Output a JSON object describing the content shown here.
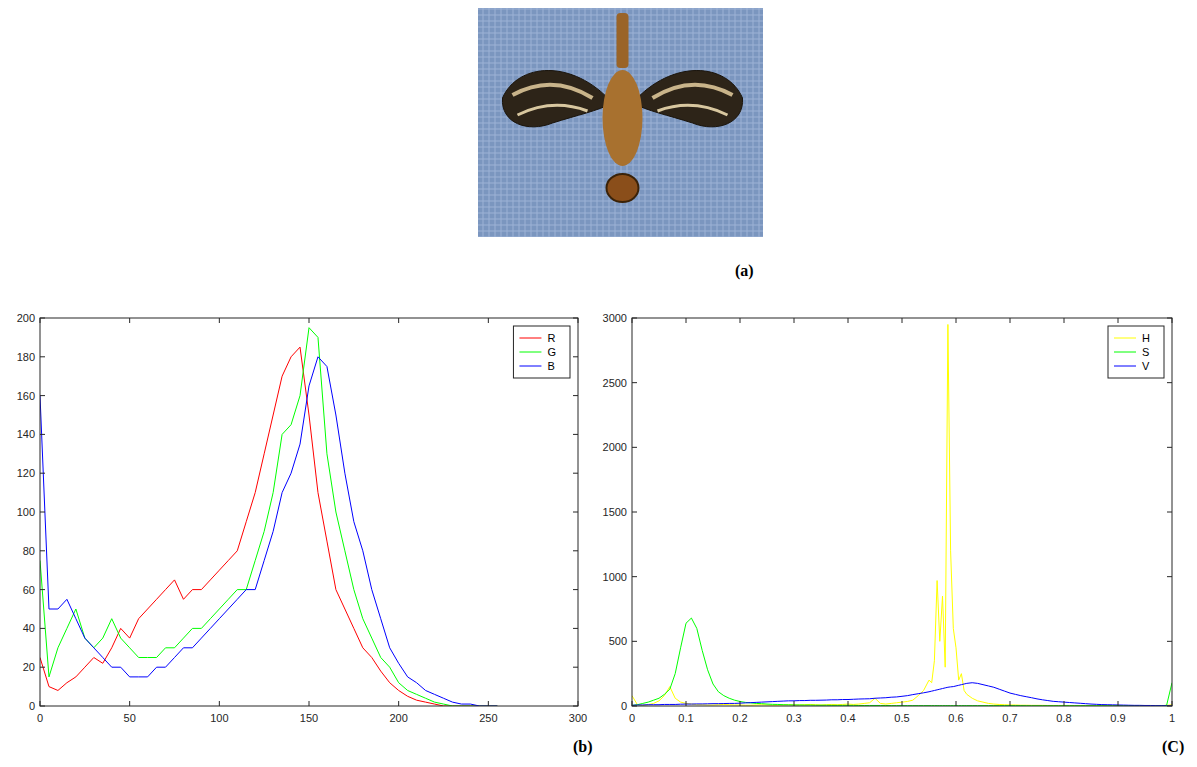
{
  "image_panel": {
    "label": "(a)"
  },
  "chart_data": [
    {
      "type": "line",
      "label": "(b)",
      "x": [
        0,
        5,
        10,
        15,
        20,
        25,
        30,
        35,
        40,
        45,
        50,
        55,
        60,
        65,
        70,
        75,
        80,
        85,
        90,
        95,
        100,
        105,
        110,
        115,
        120,
        125,
        130,
        135,
        140,
        145,
        150,
        155,
        160,
        165,
        170,
        175,
        180,
        185,
        190,
        195,
        200,
        205,
        210,
        215,
        220,
        225,
        230,
        235,
        240,
        245,
        250,
        255
      ],
      "series": [
        {
          "name": "R",
          "color": "#ff0000",
          "values": [
            25,
            10,
            8,
            12,
            15,
            20,
            25,
            22,
            30,
            40,
            35,
            45,
            50,
            55,
            60,
            65,
            55,
            60,
            60,
            65,
            70,
            75,
            80,
            95,
            110,
            130,
            150,
            170,
            180,
            185,
            150,
            110,
            85,
            60,
            50,
            40,
            30,
            25,
            18,
            12,
            8,
            5,
            3,
            2,
            1,
            0,
            0,
            0,
            0,
            0,
            0,
            0
          ]
        },
        {
          "name": "G",
          "color": "#00ff00",
          "values": [
            75,
            15,
            30,
            40,
            50,
            35,
            30,
            35,
            45,
            35,
            30,
            25,
            25,
            25,
            30,
            30,
            35,
            40,
            40,
            45,
            50,
            55,
            60,
            60,
            75,
            90,
            110,
            140,
            145,
            160,
            195,
            190,
            130,
            100,
            80,
            60,
            45,
            35,
            25,
            20,
            12,
            8,
            6,
            4,
            2,
            1,
            0,
            0,
            0,
            0,
            0,
            0
          ]
        },
        {
          "name": "B",
          "color": "#0000ff",
          "values": [
            160,
            50,
            50,
            55,
            45,
            35,
            30,
            25,
            20,
            20,
            15,
            15,
            15,
            20,
            20,
            25,
            30,
            30,
            35,
            40,
            45,
            50,
            55,
            60,
            60,
            75,
            90,
            110,
            120,
            135,
            165,
            180,
            175,
            150,
            120,
            95,
            80,
            60,
            45,
            30,
            22,
            15,
            12,
            8,
            6,
            4,
            2,
            1,
            1,
            0,
            0,
            0
          ]
        }
      ],
      "xlim": [
        0,
        300
      ],
      "xticks": [
        0,
        50,
        100,
        150,
        200,
        250,
        300
      ],
      "ylim": [
        0,
        200
      ],
      "yticks": [
        0,
        20,
        40,
        60,
        80,
        100,
        120,
        140,
        160,
        180,
        200
      ],
      "grid": false,
      "legend": "northeast"
    },
    {
      "type": "line",
      "label": "(C)",
      "x": [
        0,
        0.01,
        0.02,
        0.03,
        0.04,
        0.05,
        0.06,
        0.07,
        0.08,
        0.09,
        0.1,
        0.11,
        0.12,
        0.13,
        0.14,
        0.15,
        0.16,
        0.17,
        0.18,
        0.19,
        0.2,
        0.21,
        0.22,
        0.23,
        0.24,
        0.25,
        0.26,
        0.27,
        0.28,
        0.29,
        0.3,
        0.31,
        0.32,
        0.33,
        0.34,
        0.35,
        0.36,
        0.37,
        0.38,
        0.39,
        0.4,
        0.41,
        0.42,
        0.43,
        0.44,
        0.45,
        0.46,
        0.47,
        0.48,
        0.49,
        0.5,
        0.51,
        0.52,
        0.53,
        0.54,
        0.55,
        0.555,
        0.56,
        0.565,
        0.57,
        0.575,
        0.58,
        0.585,
        0.59,
        0.595,
        0.6,
        0.605,
        0.61,
        0.615,
        0.62,
        0.63,
        0.64,
        0.65,
        0.66,
        0.67,
        0.68,
        0.69,
        0.7,
        0.71,
        0.72,
        0.73,
        0.74,
        0.75,
        0.76,
        0.77,
        0.78,
        0.79,
        0.8,
        0.81,
        0.82,
        0.83,
        0.84,
        0.85,
        0.86,
        0.87,
        0.88,
        0.89,
        0.9,
        0.91,
        0.92,
        0.93,
        0.94,
        0.95,
        0.96,
        0.97,
        0.98,
        0.99,
        1
      ],
      "series": [
        {
          "name": "H",
          "color": "#ffff00",
          "values": [
            80,
            10,
            5,
            10,
            20,
            40,
            80,
            150,
            60,
            30,
            20,
            15,
            10,
            10,
            8,
            8,
            10,
            12,
            10,
            8,
            8,
            6,
            6,
            8,
            10,
            8,
            6,
            6,
            8,
            10,
            8,
            8,
            10,
            12,
            10,
            8,
            10,
            12,
            10,
            12,
            15,
            12,
            15,
            20,
            25,
            60,
            20,
            15,
            20,
            25,
            30,
            35,
            45,
            80,
            120,
            200,
            180,
            350,
            970,
            500,
            850,
            300,
            2950,
            1200,
            600,
            450,
            200,
            250,
            120,
            90,
            60,
            40,
            30,
            20,
            15,
            12,
            10,
            8,
            8,
            6,
            6,
            5,
            5,
            5,
            4,
            4,
            4,
            4,
            4,
            3,
            3,
            3,
            3,
            3,
            3,
            3,
            3,
            3,
            3,
            3,
            3,
            3,
            3,
            3,
            3,
            3,
            5,
            10
          ]
        },
        {
          "name": "S",
          "color": "#00ff00",
          "values": [
            5,
            10,
            20,
            30,
            45,
            60,
            90,
            130,
            250,
            450,
            640,
            680,
            600,
            430,
            280,
            170,
            110,
            80,
            60,
            45,
            35,
            28,
            24,
            20,
            18,
            15,
            13,
            12,
            10,
            9,
            8,
            8,
            7,
            7,
            6,
            6,
            6,
            5,
            5,
            5,
            5,
            5,
            4,
            4,
            4,
            4,
            4,
            4,
            3,
            3,
            3,
            3,
            3,
            3,
            3,
            3,
            3,
            3,
            3,
            3,
            3,
            3,
            3,
            3,
            3,
            3,
            3,
            3,
            3,
            3,
            3,
            3,
            3,
            3,
            3,
            3,
            3,
            3,
            3,
            3,
            2,
            2,
            2,
            2,
            2,
            2,
            2,
            2,
            2,
            2,
            2,
            2,
            2,
            2,
            2,
            2,
            2,
            2,
            2,
            2,
            2,
            2,
            2,
            2,
            2,
            2,
            5,
            180
          ]
        },
        {
          "name": "V",
          "color": "#0000ff",
          "values": [
            5,
            8,
            8,
            10,
            10,
            10,
            12,
            12,
            12,
            14,
            15,
            15,
            16,
            16,
            17,
            18,
            18,
            19,
            20,
            20,
            22,
            24,
            26,
            28,
            30,
            32,
            34,
            36,
            38,
            40,
            40,
            42,
            42,
            44,
            44,
            45,
            46,
            48,
            48,
            50,
            50,
            52,
            54,
            55,
            56,
            60,
            62,
            64,
            68,
            70,
            75,
            80,
            88,
            95,
            102,
            110,
            115,
            120,
            125,
            130,
            135,
            140,
            145,
            148,
            150,
            155,
            160,
            165,
            170,
            175,
            180,
            175,
            165,
            155,
            145,
            130,
            115,
            100,
            90,
            80,
            72,
            64,
            55,
            48,
            42,
            36,
            33,
            30,
            27,
            24,
            21,
            18,
            15,
            13,
            11,
            10,
            9,
            8,
            7,
            6,
            5,
            5,
            4,
            4,
            3,
            3,
            2,
            2
          ]
        }
      ],
      "xlim": [
        0,
        1
      ],
      "xticks": [
        0,
        0.1,
        0.2,
        0.3,
        0.4,
        0.5,
        0.6,
        0.7,
        0.8,
        0.9,
        1
      ],
      "ylim": [
        0,
        3000
      ],
      "yticks": [
        0,
        500,
        1000,
        1500,
        2000,
        2500,
        3000
      ],
      "grid": false,
      "legend": "northeast"
    }
  ]
}
